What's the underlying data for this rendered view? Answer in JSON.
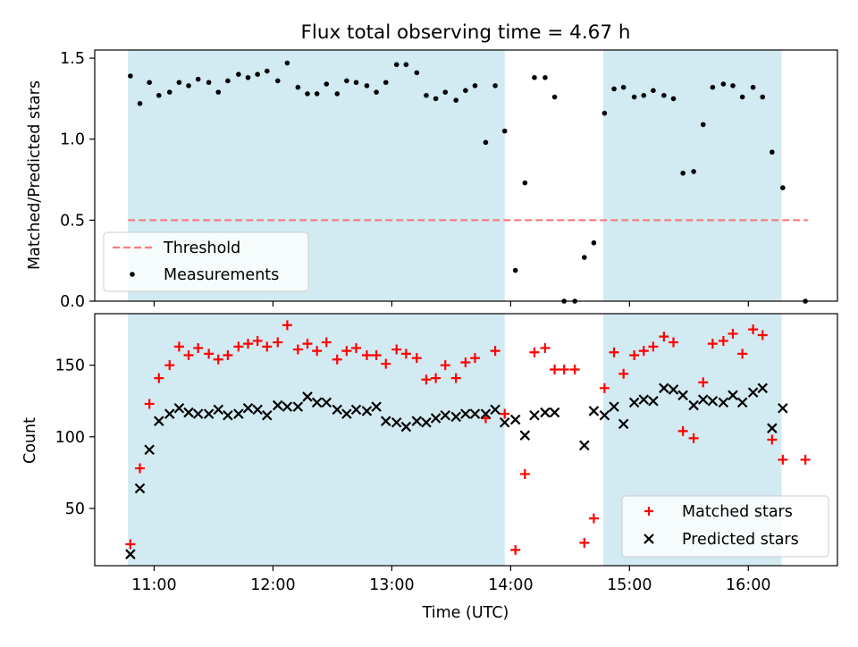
{
  "chart_data": {
    "type": "scatter",
    "title": "Flux total observing time = 4.67 h",
    "xlabel": "Time (UTC)",
    "x_ticks": [
      "11:00",
      "12:00",
      "13:00",
      "14:00",
      "15:00",
      "16:00"
    ],
    "x_tick_hours": [
      11,
      12,
      13,
      14,
      15,
      16
    ],
    "xlim_hours": [
      10.5,
      16.75
    ],
    "shaded_intervals_hours": [
      [
        10.78,
        13.95
      ],
      [
        14.78,
        16.28
      ]
    ],
    "colors": {
      "shade": "#add8e6",
      "threshold": "#f08080",
      "measurement": "#000000",
      "matched": "#ff0000",
      "predicted": "#000000"
    },
    "top_panel": {
      "ylabel": "Matched/Predicted stars",
      "ylim": [
        0,
        1.55
      ],
      "y_ticks": [
        "0.0",
        "0.5",
        "1.0",
        "1.5"
      ],
      "y_tick_values": [
        0,
        0.5,
        1.0,
        1.5
      ],
      "legend_position": "lower-left",
      "threshold": {
        "name": "Threshold",
        "value": 0.5,
        "x_range_hours": [
          10.78,
          16.5
        ],
        "style": "dashed"
      },
      "measurements": {
        "name": "Measurements",
        "points": [
          [
            10.8,
            1.39
          ],
          [
            10.88,
            1.22
          ],
          [
            10.96,
            1.35
          ],
          [
            11.04,
            1.27
          ],
          [
            11.13,
            1.29
          ],
          [
            11.21,
            1.35
          ],
          [
            11.29,
            1.33
          ],
          [
            11.37,
            1.37
          ],
          [
            11.46,
            1.35
          ],
          [
            11.54,
            1.29
          ],
          [
            11.62,
            1.36
          ],
          [
            11.71,
            1.4
          ],
          [
            11.79,
            1.38
          ],
          [
            11.87,
            1.4
          ],
          [
            11.95,
            1.42
          ],
          [
            12.04,
            1.36
          ],
          [
            12.12,
            1.47
          ],
          [
            12.21,
            1.32
          ],
          [
            12.29,
            1.28
          ],
          [
            12.37,
            1.28
          ],
          [
            12.45,
            1.34
          ],
          [
            12.54,
            1.28
          ],
          [
            12.62,
            1.36
          ],
          [
            12.7,
            1.35
          ],
          [
            12.79,
            1.33
          ],
          [
            12.87,
            1.29
          ],
          [
            12.95,
            1.35
          ],
          [
            13.04,
            1.46
          ],
          [
            13.12,
            1.46
          ],
          [
            13.21,
            1.41
          ],
          [
            13.29,
            1.27
          ],
          [
            13.37,
            1.25
          ],
          [
            13.45,
            1.29
          ],
          [
            13.54,
            1.24
          ],
          [
            13.62,
            1.3
          ],
          [
            13.7,
            1.33
          ],
          [
            13.79,
            0.98
          ],
          [
            13.87,
            1.33
          ],
          [
            13.95,
            1.05
          ],
          [
            14.04,
            0.19
          ],
          [
            14.12,
            0.73
          ],
          [
            14.2,
            1.38
          ],
          [
            14.29,
            1.38
          ],
          [
            14.37,
            1.26
          ],
          [
            14.45,
            0.0
          ],
          [
            14.54,
            0.0
          ],
          [
            14.62,
            0.27
          ],
          [
            14.7,
            0.36
          ],
          [
            14.79,
            1.16
          ],
          [
            14.87,
            1.31
          ],
          [
            14.95,
            1.32
          ],
          [
            15.04,
            1.26
          ],
          [
            15.12,
            1.27
          ],
          [
            15.2,
            1.3
          ],
          [
            15.29,
            1.27
          ],
          [
            15.37,
            1.25
          ],
          [
            15.45,
            0.79
          ],
          [
            15.54,
            0.8
          ],
          [
            15.62,
            1.09
          ],
          [
            15.7,
            1.32
          ],
          [
            15.79,
            1.34
          ],
          [
            15.87,
            1.33
          ],
          [
            15.95,
            1.26
          ],
          [
            16.04,
            1.32
          ],
          [
            16.12,
            1.26
          ],
          [
            16.2,
            0.92
          ],
          [
            16.29,
            0.7
          ],
          [
            16.48,
            0.0
          ]
        ]
      }
    },
    "bottom_panel": {
      "ylabel": "Count",
      "ylim": [
        10,
        186
      ],
      "y_ticks": [
        "50",
        "100",
        "150"
      ],
      "y_tick_values": [
        50,
        100,
        150
      ],
      "legend_position": "lower-right",
      "series": [
        {
          "name": "Matched stars",
          "marker": "plus",
          "points": [
            [
              10.8,
              25
            ],
            [
              10.88,
              78
            ],
            [
              10.96,
              123
            ],
            [
              11.04,
              141
            ],
            [
              11.13,
              150
            ],
            [
              11.21,
              163
            ],
            [
              11.29,
              157
            ],
            [
              11.37,
              162
            ],
            [
              11.46,
              158
            ],
            [
              11.54,
              154
            ],
            [
              11.62,
              157
            ],
            [
              11.71,
              163
            ],
            [
              11.79,
              165
            ],
            [
              11.87,
              167
            ],
            [
              11.95,
              163
            ],
            [
              12.04,
              166
            ],
            [
              12.12,
              178
            ],
            [
              12.21,
              161
            ],
            [
              12.29,
              165
            ],
            [
              12.37,
              160
            ],
            [
              12.45,
              166
            ],
            [
              12.54,
              154
            ],
            [
              12.62,
              160
            ],
            [
              12.7,
              162
            ],
            [
              12.79,
              157
            ],
            [
              12.87,
              157
            ],
            [
              12.95,
              151
            ],
            [
              13.04,
              161
            ],
            [
              13.12,
              158
            ],
            [
              13.21,
              155
            ],
            [
              13.29,
              140
            ],
            [
              13.37,
              141
            ],
            [
              13.45,
              150
            ],
            [
              13.54,
              141
            ],
            [
              13.62,
              152
            ],
            [
              13.7,
              155
            ],
            [
              13.79,
              113
            ],
            [
              13.87,
              160
            ],
            [
              13.95,
              116
            ],
            [
              14.04,
              21
            ],
            [
              14.12,
              74
            ],
            [
              14.2,
              159
            ],
            [
              14.29,
              162
            ],
            [
              14.37,
              147
            ],
            [
              14.45,
              147
            ],
            [
              14.54,
              147
            ],
            [
              14.62,
              26
            ],
            [
              14.7,
              43
            ],
            [
              14.79,
              134
            ],
            [
              14.87,
              159
            ],
            [
              14.95,
              144
            ],
            [
              15.04,
              157
            ],
            [
              15.12,
              160
            ],
            [
              15.2,
              163
            ],
            [
              15.29,
              170
            ],
            [
              15.37,
              166
            ],
            [
              15.45,
              104
            ],
            [
              15.54,
              99
            ],
            [
              15.62,
              138
            ],
            [
              15.7,
              165
            ],
            [
              15.79,
              167
            ],
            [
              15.87,
              172
            ],
            [
              15.95,
              158
            ],
            [
              16.04,
              175
            ],
            [
              16.12,
              171
            ],
            [
              16.2,
              98
            ],
            [
              16.29,
              84
            ],
            [
              16.48,
              84
            ]
          ]
        },
        {
          "name": "Predicted stars",
          "marker": "x",
          "points": [
            [
              10.8,
              18
            ],
            [
              10.88,
              64
            ],
            [
              10.96,
              91
            ],
            [
              11.04,
              111
            ],
            [
              11.13,
              116
            ],
            [
              11.21,
              120
            ],
            [
              11.29,
              117
            ],
            [
              11.37,
              116
            ],
            [
              11.46,
              116
            ],
            [
              11.54,
              119
            ],
            [
              11.62,
              115
            ],
            [
              11.71,
              116
            ],
            [
              11.79,
              120
            ],
            [
              11.87,
              119
            ],
            [
              11.95,
              115
            ],
            [
              12.04,
              122
            ],
            [
              12.12,
              121
            ],
            [
              12.21,
              121
            ],
            [
              12.29,
              128
            ],
            [
              12.37,
              124
            ],
            [
              12.45,
              124
            ],
            [
              12.54,
              119
            ],
            [
              12.62,
              116
            ],
            [
              12.7,
              119
            ],
            [
              12.79,
              118
            ],
            [
              12.87,
              121
            ],
            [
              12.95,
              111
            ],
            [
              13.04,
              110
            ],
            [
              13.12,
              107
            ],
            [
              13.21,
              111
            ],
            [
              13.29,
              110
            ],
            [
              13.37,
              113
            ],
            [
              13.45,
              115
            ],
            [
              13.54,
              114
            ],
            [
              13.62,
              116
            ],
            [
              13.7,
              116
            ],
            [
              13.79,
              116
            ],
            [
              13.87,
              119
            ],
            [
              13.95,
              110
            ],
            [
              14.04,
              112
            ],
            [
              14.12,
              101
            ],
            [
              14.2,
              115
            ],
            [
              14.29,
              117
            ],
            [
              14.37,
              117
            ],
            [
              14.62,
              94
            ],
            [
              14.7,
              118
            ],
            [
              14.79,
              115
            ],
            [
              14.87,
              121
            ],
            [
              14.95,
              109
            ],
            [
              15.04,
              124
            ],
            [
              15.12,
              126
            ],
            [
              15.2,
              125
            ],
            [
              15.29,
              134
            ],
            [
              15.37,
              133
            ],
            [
              15.45,
              129
            ],
            [
              15.54,
              122
            ],
            [
              15.62,
              126
            ],
            [
              15.7,
              125
            ],
            [
              15.79,
              124
            ],
            [
              15.87,
              129
            ],
            [
              15.95,
              124
            ],
            [
              16.04,
              131
            ],
            [
              16.12,
              134
            ],
            [
              16.2,
              106
            ],
            [
              16.29,
              120
            ]
          ]
        }
      ]
    }
  }
}
